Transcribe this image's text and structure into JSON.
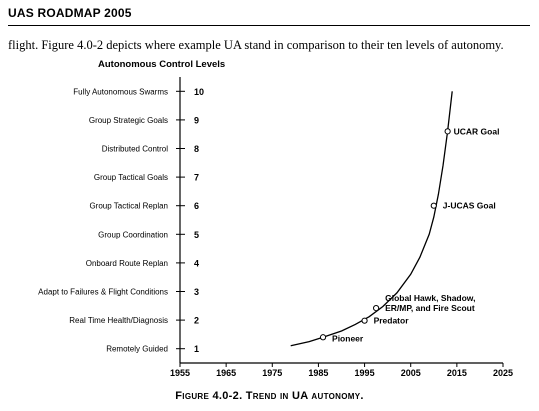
{
  "header": {
    "title": "UAS ROADMAP 2005"
  },
  "body_text": "flight.  Figure 4.0-2 depicts where example UA stand in comparison to their ten levels of autonomy.",
  "caption": "Figure 4.0-2.  Trend in UA autonomy.",
  "chart_data": {
    "type": "line",
    "title": "Autonomous Control Levels",
    "xlabel": "",
    "ylabel": "",
    "xlim": [
      1955,
      2025
    ],
    "ylim": [
      0.5,
      10.5
    ],
    "x_ticks": [
      1955,
      1965,
      1975,
      1985,
      1995,
      2005,
      2015,
      2025
    ],
    "y_levels": [
      {
        "level": 1,
        "label": "Remotely Guided"
      },
      {
        "level": 2,
        "label": "Real Time Health/Diagnosis"
      },
      {
        "level": 3,
        "label": "Adapt to Failures & Flight Conditions"
      },
      {
        "level": 4,
        "label": "Onboard Route Replan"
      },
      {
        "level": 5,
        "label": "Group Coordination"
      },
      {
        "level": 6,
        "label": "Group Tactical Replan"
      },
      {
        "level": 7,
        "label": "Group Tactical Goals"
      },
      {
        "level": 8,
        "label": "Distributed Control"
      },
      {
        "level": 9,
        "label": "Group Strategic Goals"
      },
      {
        "level": 10,
        "label": "Fully Autonomous Swarms"
      }
    ],
    "trend": {
      "x": [
        1979,
        1983,
        1986,
        1990,
        1993,
        1996,
        1999,
        2002,
        2005,
        2007,
        2009,
        2010,
        2011,
        2012,
        2013,
        2014
      ],
      "y": [
        1.1,
        1.25,
        1.4,
        1.62,
        1.85,
        2.12,
        2.48,
        2.95,
        3.6,
        4.2,
        5.0,
        5.6,
        6.4,
        7.4,
        8.6,
        10.0
      ]
    },
    "points": [
      {
        "name": "Pioneer",
        "x": 1986,
        "y": 1.4
      },
      {
        "name": "Predator",
        "x": 1995,
        "y": 1.98
      },
      {
        "name": "Global Hawk, Shadow,",
        "name2": "ER/MP, and Fire Scout",
        "x": 1997.5,
        "y": 2.42
      },
      {
        "name": "J-UCAS Goal",
        "x": 2010,
        "y": 6.0
      },
      {
        "name": "UCAR Goal",
        "x": 2013,
        "y": 8.6
      }
    ]
  }
}
